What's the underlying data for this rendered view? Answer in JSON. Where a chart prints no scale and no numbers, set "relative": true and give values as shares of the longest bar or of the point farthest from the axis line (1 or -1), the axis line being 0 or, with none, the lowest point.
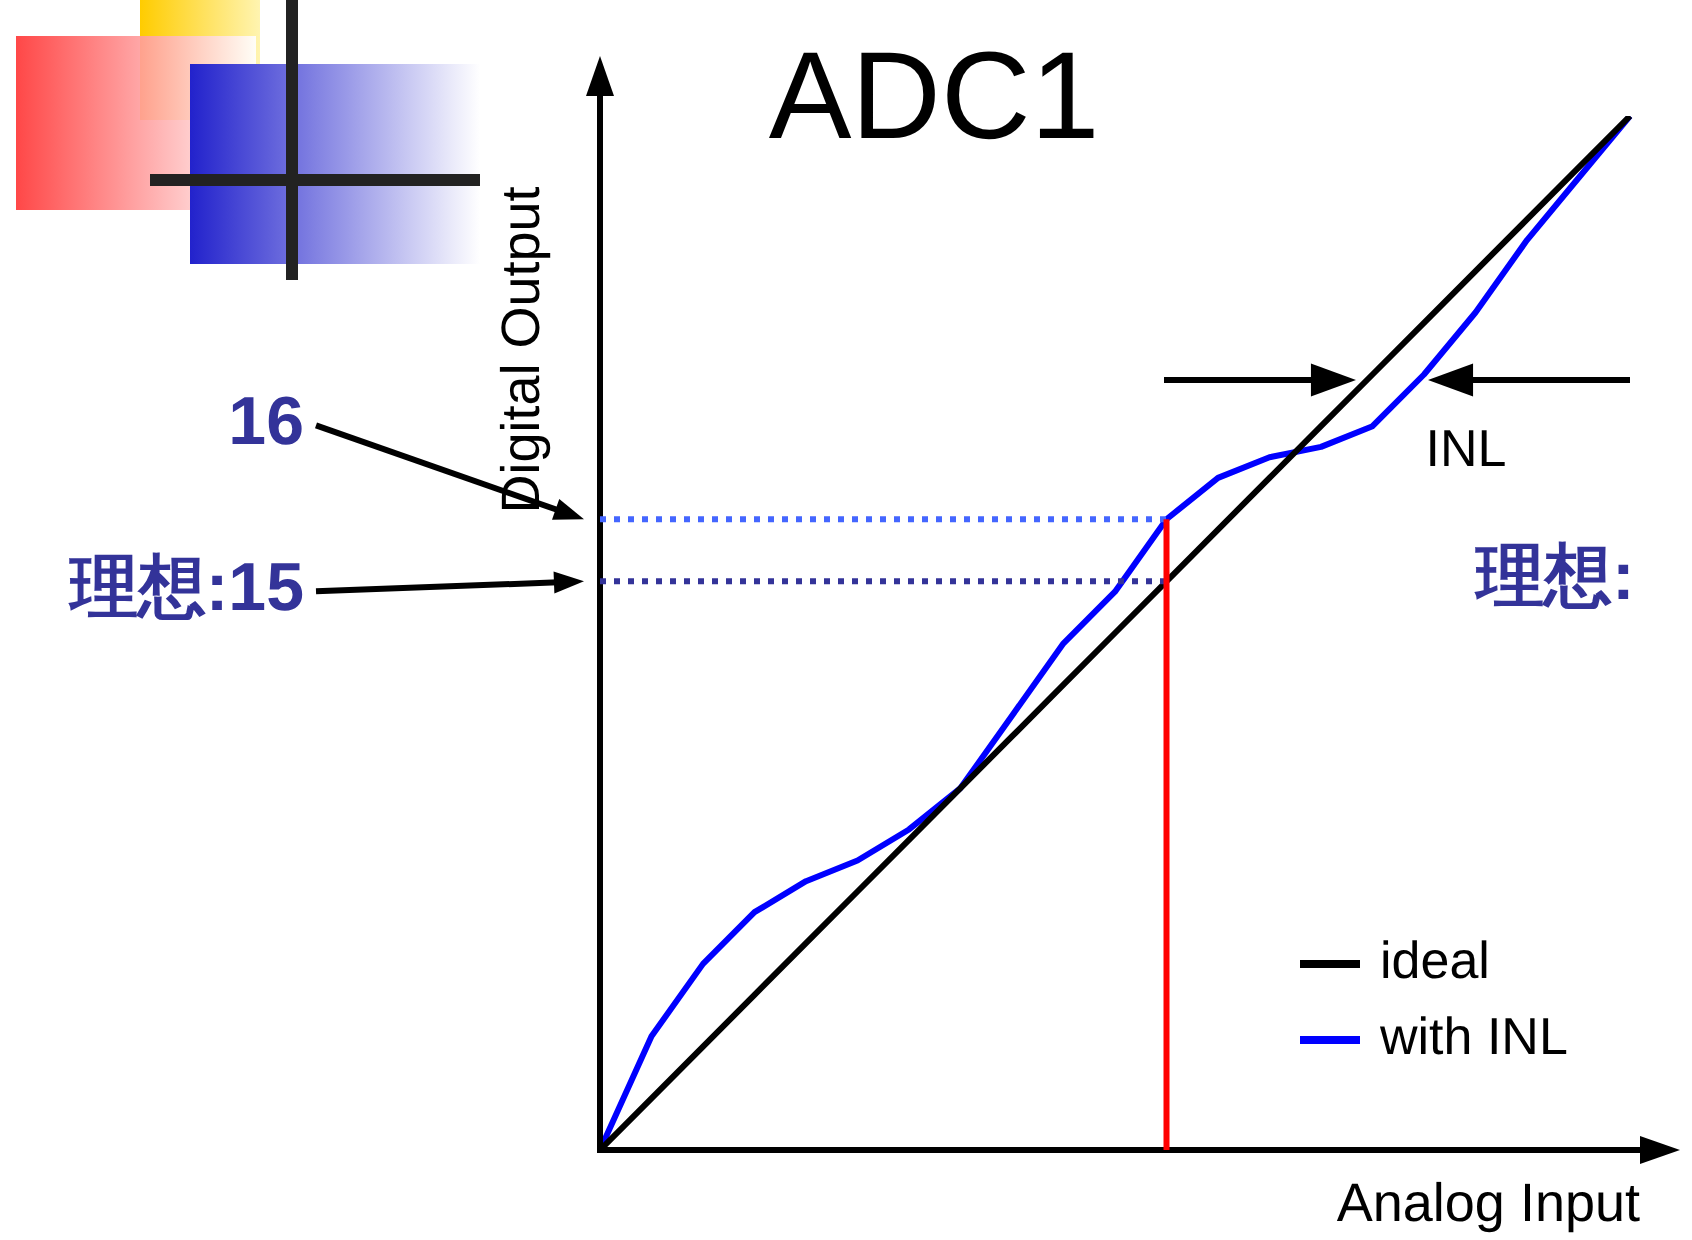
{
  "chart_data": {
    "type": "line",
    "title": "ADC1",
    "xlabel": "Analog Input",
    "ylabel": "Digital Output",
    "relative": true,
    "marker": "none",
    "line_style": "solid",
    "legend": "bottom right",
    "grid": false,
    "categories": [
      null,
      null,
      null,
      null,
      null,
      null,
      null,
      null,
      null,
      null,
      null,
      null,
      null,
      null,
      null,
      null,
      null,
      null,
      null,
      null,
      null
    ],
    "series": [
      {
        "name": "ideal",
        "color": "#000000",
        "values": [
          0,
          0.05,
          0.1,
          0.15,
          0.2,
          0.25,
          0.3,
          0.35,
          0.4,
          0.45,
          0.5,
          0.55,
          0.6,
          0.65,
          0.7,
          0.75,
          0.8,
          0.85,
          0.9,
          0.95,
          1
        ]
      },
      {
        "name": "with INL",
        "color": "#0000ff",
        "values": [
          0,
          0.11,
          0.18,
          0.23,
          0.26,
          0.28,
          0.31,
          0.35,
          0.42,
          0.49,
          0.54,
          0.61,
          0.65,
          0.67,
          0.68,
          0.7,
          0.75,
          0.81,
          0.88,
          0.94,
          1
        ]
      }
    ],
    "ref_lines": [
      {
        "axis": "y",
        "value": 0.61,
        "color": "#4466ff",
        "line_style": "dotted"
      },
      {
        "axis": "y",
        "value": 0.55,
        "color": "#333399",
        "line_style": "dotted"
      }
    ],
    "annotations": [
      "16",
      "理想:15",
      "INL",
      "理想:"
    ]
  }
}
